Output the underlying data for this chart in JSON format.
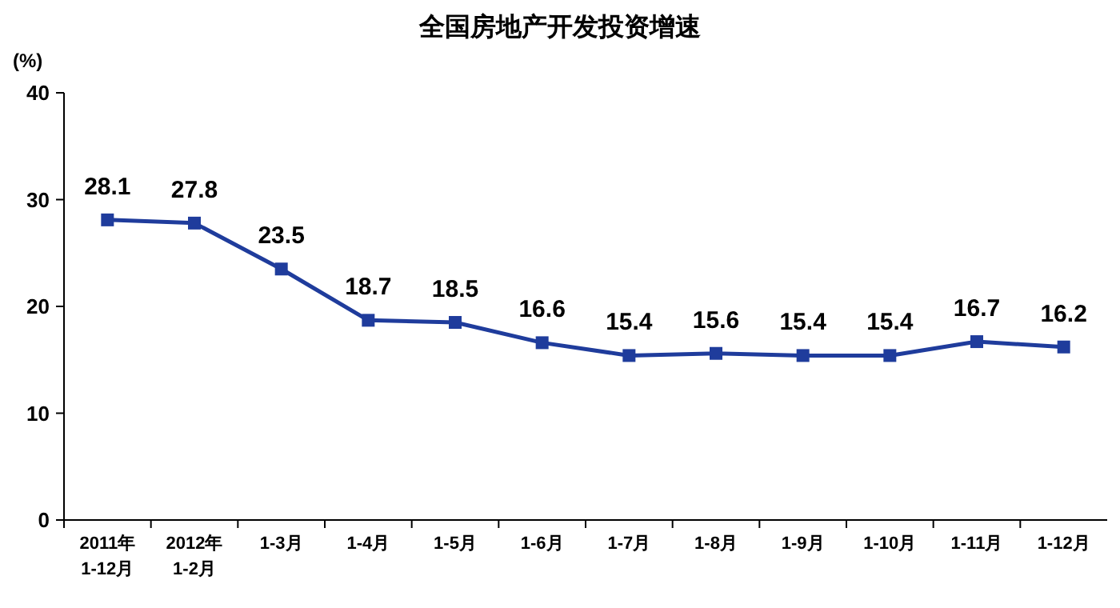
{
  "chart_data": {
    "type": "line",
    "title": "全国房地产开发投资增速",
    "ylabel": "(%)",
    "categories": [
      "2011年\n1-12月",
      "2012年\n1-2月",
      "1-3月",
      "1-4月",
      "1-5月",
      "1-6月",
      "1-7月",
      "1-8月",
      "1-9月",
      "1-10月",
      "1-11月",
      "1-12月"
    ],
    "series": [
      {
        "color": "#1f3c9c",
        "values": [
          28.1,
          27.8,
          23.5,
          18.7,
          18.5,
          16.6,
          15.4,
          15.6,
          15.4,
          15.4,
          16.7,
          16.2
        ]
      }
    ],
    "ylim": [
      0,
      40
    ],
    "yticks": [
      0,
      10,
      20,
      30,
      40
    ],
    "grid": false,
    "marker": "square",
    "line_style": "solid",
    "data_labels": true
  }
}
